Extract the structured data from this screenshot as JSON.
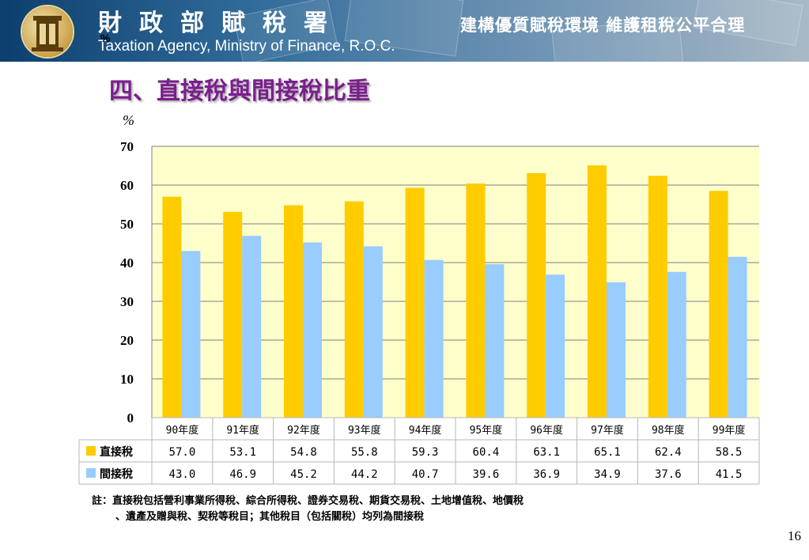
{
  "header": {
    "agency_name_cn": "財政部賦稅署",
    "agency_name_en": "Taxation Agency, Ministry of Finance, R.O.C.",
    "slogan": "建構優質賦稅環境 維護租稅公平合理",
    "stray_percent": "%"
  },
  "title": "四、直接稅與間接稅比重",
  "colors": {
    "direct_tax": "#ffcc00",
    "indirect_tax": "#99ccff",
    "plot_background": "#ffffcc",
    "title": "#7a1f8c"
  },
  "chart_data": {
    "type": "bar",
    "unit": "%",
    "categories": [
      "90年度",
      "91年度",
      "92年度",
      "93年度",
      "94年度",
      "95年度",
      "96年度",
      "97年度",
      "98年度",
      "99年度"
    ],
    "series": [
      {
        "name": "直接稅",
        "values": [
          57.0,
          53.1,
          54.8,
          55.8,
          59.3,
          60.4,
          63.1,
          65.1,
          62.4,
          58.5
        ]
      },
      {
        "name": "間接稅",
        "values": [
          43.0,
          46.9,
          45.2,
          44.2,
          40.7,
          39.6,
          36.9,
          34.9,
          37.6,
          41.5
        ]
      }
    ],
    "ylim": [
      0,
      70
    ],
    "yticks": [
      0,
      10,
      20,
      30,
      40,
      50,
      60,
      70
    ],
    "grid": true,
    "data_table": true
  },
  "note": {
    "line1": "註：直接稅包括營利事業所得稅、綜合所得稅、證券交易稅、期貨交易稅、土地增值稅、地價稅",
    "line2": "、遺產及贈與稅、契稅等稅目；其他稅目（包括關稅）均列為間接稅"
  },
  "page_number": "16"
}
